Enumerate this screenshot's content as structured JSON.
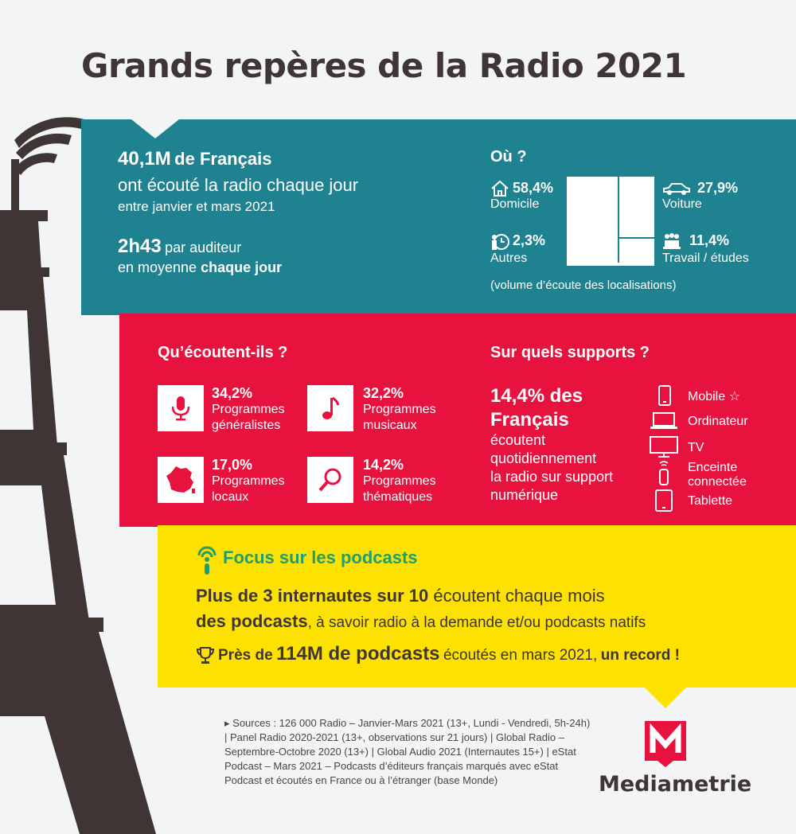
{
  "title": "Grands repères de la Radio 2021",
  "audience": {
    "stat": "40,1M",
    "stat_suffix": "de Français",
    "line2": "ont écouté la radio chaque jour",
    "line3": "entre janvier et mars 2021",
    "duration": "2h43",
    "duration_suffix": "par auditeur",
    "avg_prefix": "en moyenne",
    "avg_bold": "chaque jour"
  },
  "where": {
    "heading": "Où ?",
    "footnote": "(volume d’écoute des localisations)",
    "items": [
      {
        "value": "58,4%",
        "label": "Domicile",
        "icon": "house-icon"
      },
      {
        "value": "27,9%",
        "label": "Voiture",
        "icon": "car-icon"
      },
      {
        "value": "2,3%",
        "label": "Autres",
        "icon": "person-clock-icon"
      },
      {
        "value": "11,4%",
        "label": "Travail / études",
        "icon": "group-icon"
      }
    ],
    "shares": {
      "domicile": 58.4,
      "voiture": 27.9,
      "travail": 11.4,
      "autres": 2.3
    }
  },
  "what": {
    "heading": "Qu’écoutent-ils ?",
    "items": [
      {
        "value": "34,2%",
        "line1": "Programmes",
        "line2": "généralistes",
        "icon": "microphone-icon"
      },
      {
        "value": "32,2%",
        "line1": "Programmes",
        "line2": "musicaux",
        "icon": "music-note-icon"
      },
      {
        "value": "17,0%",
        "line1": "Programmes",
        "line2": "locaux",
        "icon": "france-map-icon"
      },
      {
        "value": "14,2%",
        "line1": "Programmes",
        "line2": "thématiques",
        "icon": "magnifier-icon"
      }
    ]
  },
  "supports": {
    "heading": "Sur quels supports ?",
    "stat": "14,4% des",
    "stat_line2": "Français",
    "desc1": "écoutent",
    "desc2": "quotidiennement",
    "desc3": "la radio sur support",
    "desc4": "numérique",
    "devices": [
      {
        "label": "Mobile",
        "icon": "smartphone-icon"
      },
      {
        "label": "Ordinateur",
        "icon": "laptop-icon"
      },
      {
        "label": "TV",
        "icon": "tv-icon"
      },
      {
        "label": "Enceinte",
        "label2": "connectée",
        "icon": "smart-speaker-icon"
      },
      {
        "label": "Tablette",
        "icon": "tablet-icon"
      }
    ]
  },
  "podcasts": {
    "heading": "Focus sur les podcasts",
    "l1_bold": "Plus de 3 internautes sur 10",
    "l1_rest": "écoutent chaque mois",
    "l2_bold": "des podcasts",
    "l2_rest": ", à savoir radio à la demande et/ou podcasts natifs",
    "l3_a": "Près de",
    "l3_bold": "114M de podcasts",
    "l3_rest": "écoutés en mars 2021,",
    "l3_end": "un record !"
  },
  "sources": "Sources : 126 000 Radio – Janvier-Mars 2021 (13+, Lundi - Vendredi, 5h-24h) | Panel Radio 2020-2021 (13+, observations sur 21 jours) | Global Radio – Septembre-Octobre 2020 (13+) | Global Audio 2021 (Internautes 15+) | eStat Podcast – Mars 2021 – Podcasts d’éditeurs français marqués avec eStat Podcast et écoutés en France ou à l’étranger (base Monde)",
  "brand": "Mediametrie",
  "colors": {
    "teal": "#1e8290",
    "red": "#e8123f",
    "yellow": "#fde100",
    "green": "#1f9e6f",
    "dark": "#3f3535"
  }
}
